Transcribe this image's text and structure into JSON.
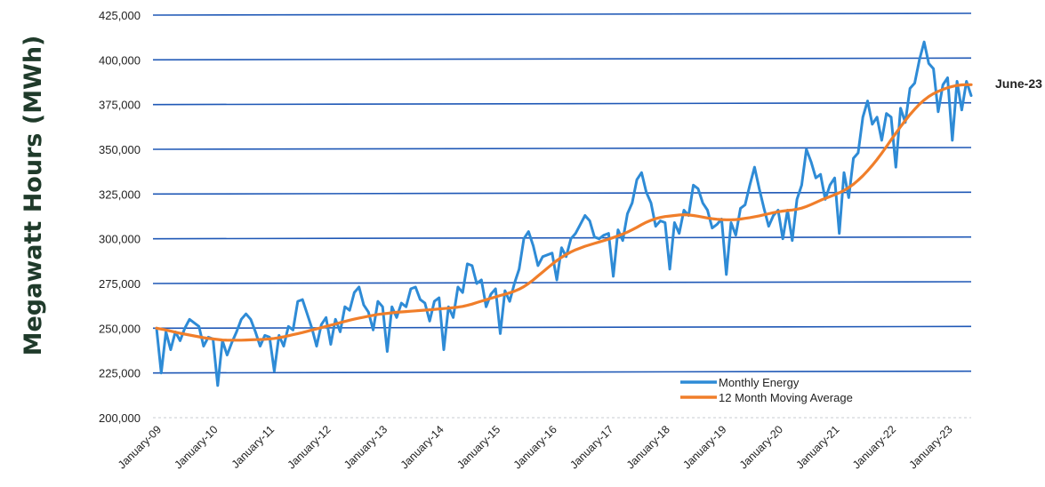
{
  "chart_data": {
    "type": "line",
    "title": "",
    "ylabel": "Megawatt Hours (MWh)",
    "xlabel": "",
    "ylim": [
      200000,
      425000
    ],
    "yticks": [
      200000,
      225000,
      250000,
      275000,
      300000,
      325000,
      350000,
      375000,
      400000,
      425000
    ],
    "ytick_labels": [
      "200,000",
      "225,000",
      "250,000",
      "275,000",
      "300,000",
      "325,000",
      "350,000",
      "375,000",
      "400,000",
      "425,000"
    ],
    "xtick_labels": [
      "January-09",
      "January-10",
      "January-11",
      "January-12",
      "January-13",
      "January-14",
      "January-15",
      "January-16",
      "January-17",
      "January-18",
      "January-19",
      "January-20",
      "January-21",
      "January-22",
      "January-23"
    ],
    "x_range": [
      "2009-01",
      "2023-06"
    ],
    "grid": "horizontal",
    "legend_position": "bottom-right",
    "annotation": "June-23",
    "series": [
      {
        "name": "Monthly Energy",
        "color": "#2e8bd6",
        "values": [
          250000,
          225000,
          248000,
          238000,
          248000,
          243000,
          250000,
          255000,
          253000,
          251000,
          240000,
          245000,
          244000,
          218000,
          243000,
          235000,
          242000,
          248000,
          255000,
          258000,
          255000,
          248000,
          240000,
          246000,
          245000,
          226000,
          246000,
          240000,
          251000,
          249000,
          265000,
          266000,
          258000,
          250000,
          240000,
          252000,
          256000,
          241000,
          255000,
          248000,
          262000,
          260000,
          270000,
          273000,
          263000,
          259000,
          249000,
          265000,
          262000,
          237000,
          262000,
          256000,
          264000,
          262000,
          272000,
          273000,
          266000,
          264000,
          254000,
          265000,
          267000,
          238000,
          262000,
          256000,
          273000,
          270000,
          286000,
          285000,
          275000,
          277000,
          262000,
          269000,
          272000,
          247000,
          271000,
          265000,
          275000,
          283000,
          300000,
          304000,
          296000,
          285000,
          290000,
          291000,
          292000,
          277000,
          295000,
          290000,
          300000,
          303000,
          308000,
          313000,
          310000,
          301000,
          300000,
          302000,
          303000,
          279000,
          305000,
          299000,
          314000,
          320000,
          333000,
          337000,
          326000,
          320000,
          307000,
          310000,
          309000,
          283000,
          309000,
          303000,
          316000,
          313000,
          330000,
          328000,
          320000,
          316000,
          306000,
          308000,
          311000,
          280000,
          309000,
          302000,
          317000,
          319000,
          330000,
          340000,
          328000,
          317000,
          307000,
          313000,
          316000,
          300000,
          316000,
          299000,
          322000,
          330000,
          350000,
          343000,
          334000,
          336000,
          322000,
          330000,
          334000,
          303000,
          337000,
          323000,
          345000,
          348000,
          368000,
          377000,
          364000,
          368000,
          355000,
          370000,
          368000,
          340000,
          373000,
          365000,
          384000,
          387000,
          400000,
          410000,
          398000,
          395000,
          371000,
          386000,
          390000,
          355000,
          388000,
          372000,
          388000,
          380000
        ]
      },
      {
        "name": "12 Month Moving Average",
        "color": "#f07e2a",
        "values": [
          250000,
          249500,
          249000,
          248400,
          247800,
          247200,
          246700,
          246200,
          245700,
          245200,
          244700,
          244300,
          244000,
          243700,
          243400,
          243300,
          243300,
          243300,
          243300,
          243400,
          243500,
          243600,
          243700,
          243800,
          244000,
          244300,
          244700,
          245200,
          245800,
          246400,
          247000,
          247600,
          248300,
          249000,
          249600,
          250300,
          251000,
          251700,
          252400,
          253100,
          253800,
          254500,
          255100,
          255700,
          256200,
          256700,
          257200,
          257700,
          258000,
          258300,
          258600,
          258900,
          259100,
          259300,
          259500,
          259700,
          259900,
          260100,
          260300,
          260500,
          260800,
          261000,
          261200,
          261500,
          261800,
          262200,
          262800,
          263500,
          264300,
          265100,
          265900,
          266700,
          267500,
          268300,
          269000,
          269800,
          270700,
          271800,
          273200,
          275000,
          277000,
          279200,
          281400,
          283600,
          285800,
          287800,
          289600,
          291200,
          292600,
          293800,
          294800,
          295800,
          296600,
          297400,
          298200,
          299000,
          299800,
          300700,
          301600,
          302600,
          303700,
          305000,
          306400,
          307900,
          309200,
          310300,
          311200,
          311900,
          312400,
          312700,
          313000,
          313300,
          313400,
          313300,
          313000,
          312600,
          312100,
          311600,
          311200,
          310900,
          310700,
          310600,
          310600,
          310700,
          311000,
          311400,
          311800,
          312300,
          312800,
          313400,
          314000,
          314600,
          315100,
          315500,
          315800,
          316100,
          316500,
          317100,
          318000,
          319100,
          320300,
          321500,
          322600,
          323600,
          324600,
          325700,
          327000,
          328600,
          330500,
          332700,
          335200,
          338000,
          341000,
          344300,
          347800,
          351500,
          355300,
          359000,
          362600,
          366100,
          369400,
          372400,
          375200,
          377500,
          379500,
          381100,
          382400,
          383500,
          384400,
          385100,
          385700,
          386000,
          386100,
          386100
        ]
      }
    ]
  }
}
